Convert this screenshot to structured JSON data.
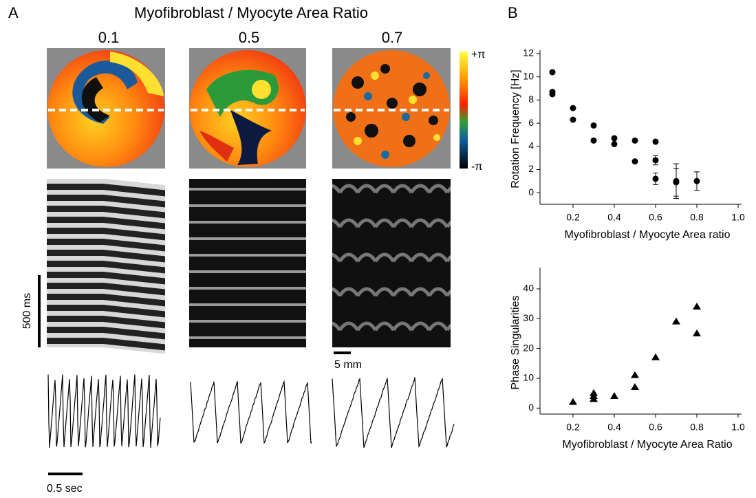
{
  "panel_a": {
    "label": "A",
    "title": "Myofibroblast / Myocyte Area Ratio",
    "ratios": [
      "0.1",
      "0.5",
      "0.7"
    ],
    "colorbar_top": "+π",
    "colorbar_bottom": "-π",
    "time_scale": "500 ms",
    "space_scale": "5 mm",
    "trace_scale": "0.5 sec"
  },
  "panel_b_label": "B",
  "chart_data": [
    {
      "type": "scatter",
      "marker": "circle",
      "color": "#000000",
      "ylabel": "Rotation Frequency [Hz]",
      "xlabel": "Myofibroblast / Myocyte Area ratio",
      "x": [
        0.1,
        0.1,
        0.1,
        0.2,
        0.2,
        0.3,
        0.3,
        0.4,
        0.4,
        0.5,
        0.5,
        0.6,
        0.6,
        0.6,
        0.7,
        0.7,
        0.8
      ],
      "values": [
        10.4,
        8.7,
        8.5,
        7.3,
        6.3,
        5.8,
        4.5,
        4.7,
        4.2,
        4.5,
        2.7,
        4.4,
        2.8,
        1.2,
        1.0,
        0.9,
        1.0
      ],
      "errors": [
        null,
        null,
        null,
        null,
        null,
        null,
        null,
        null,
        null,
        null,
        null,
        null,
        0.4,
        0.5,
        1.5,
        1.2,
        0.8
      ],
      "xlim": [
        0.04,
        1.0
      ],
      "xticks": [
        0.2,
        0.4,
        0.6,
        0.8,
        {
          "value": 1,
          "label": "1.0"
        }
      ],
      "ylim": [
        -1,
        12
      ],
      "yticks": [
        0,
        2,
        4,
        6,
        8,
        10,
        12
      ]
    },
    {
      "type": "scatter",
      "marker": "triangle",
      "color": "#000000",
      "ylabel": "Phase Singularities",
      "xlabel": "Myofibroblast / Myocyte Area Ratio",
      "x": [
        0.2,
        0.3,
        0.3,
        0.3,
        0.4,
        0.5,
        0.5,
        0.6,
        0.7,
        0.8,
        0.8
      ],
      "values": [
        2,
        5,
        4,
        3,
        4,
        11,
        7,
        17,
        29,
        34,
        25
      ],
      "xlim": [
        0.04,
        1.0
      ],
      "xticks": [
        0.2,
        0.4,
        0.6,
        0.8,
        {
          "value": 1,
          "label": "1.0"
        }
      ],
      "ylim": [
        -2,
        46
      ],
      "yticks": [
        0,
        10,
        20,
        30,
        40
      ]
    }
  ]
}
